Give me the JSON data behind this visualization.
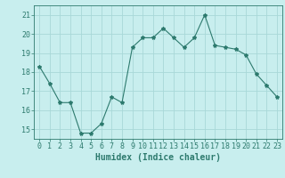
{
  "x": [
    0,
    1,
    2,
    3,
    4,
    5,
    6,
    7,
    8,
    9,
    10,
    11,
    12,
    13,
    14,
    15,
    16,
    17,
    18,
    19,
    20,
    21,
    22,
    23
  ],
  "y": [
    18.3,
    17.4,
    16.4,
    16.4,
    14.8,
    14.8,
    15.3,
    16.7,
    16.4,
    19.3,
    19.8,
    19.8,
    20.3,
    19.8,
    19.3,
    19.8,
    21.0,
    19.4,
    19.3,
    19.2,
    18.9,
    17.9,
    17.3,
    16.7
  ],
  "line_color": "#2d7a6e",
  "marker": "*",
  "marker_size": 3,
  "bg_color": "#c8eeee",
  "grid_color": "#a8d8d8",
  "xlabel": "Humidex (Indice chaleur)",
  "xlim": [
    -0.5,
    23.5
  ],
  "ylim": [
    14.5,
    21.5
  ],
  "yticks": [
    15,
    16,
    17,
    18,
    19,
    20,
    21
  ],
  "xticks": [
    0,
    1,
    2,
    3,
    4,
    5,
    6,
    7,
    8,
    9,
    10,
    11,
    12,
    13,
    14,
    15,
    16,
    17,
    18,
    19,
    20,
    21,
    22,
    23
  ],
  "tick_color": "#2d7a6e",
  "label_color": "#2d7a6e",
  "font_size": 6,
  "xlabel_fontsize": 7
}
